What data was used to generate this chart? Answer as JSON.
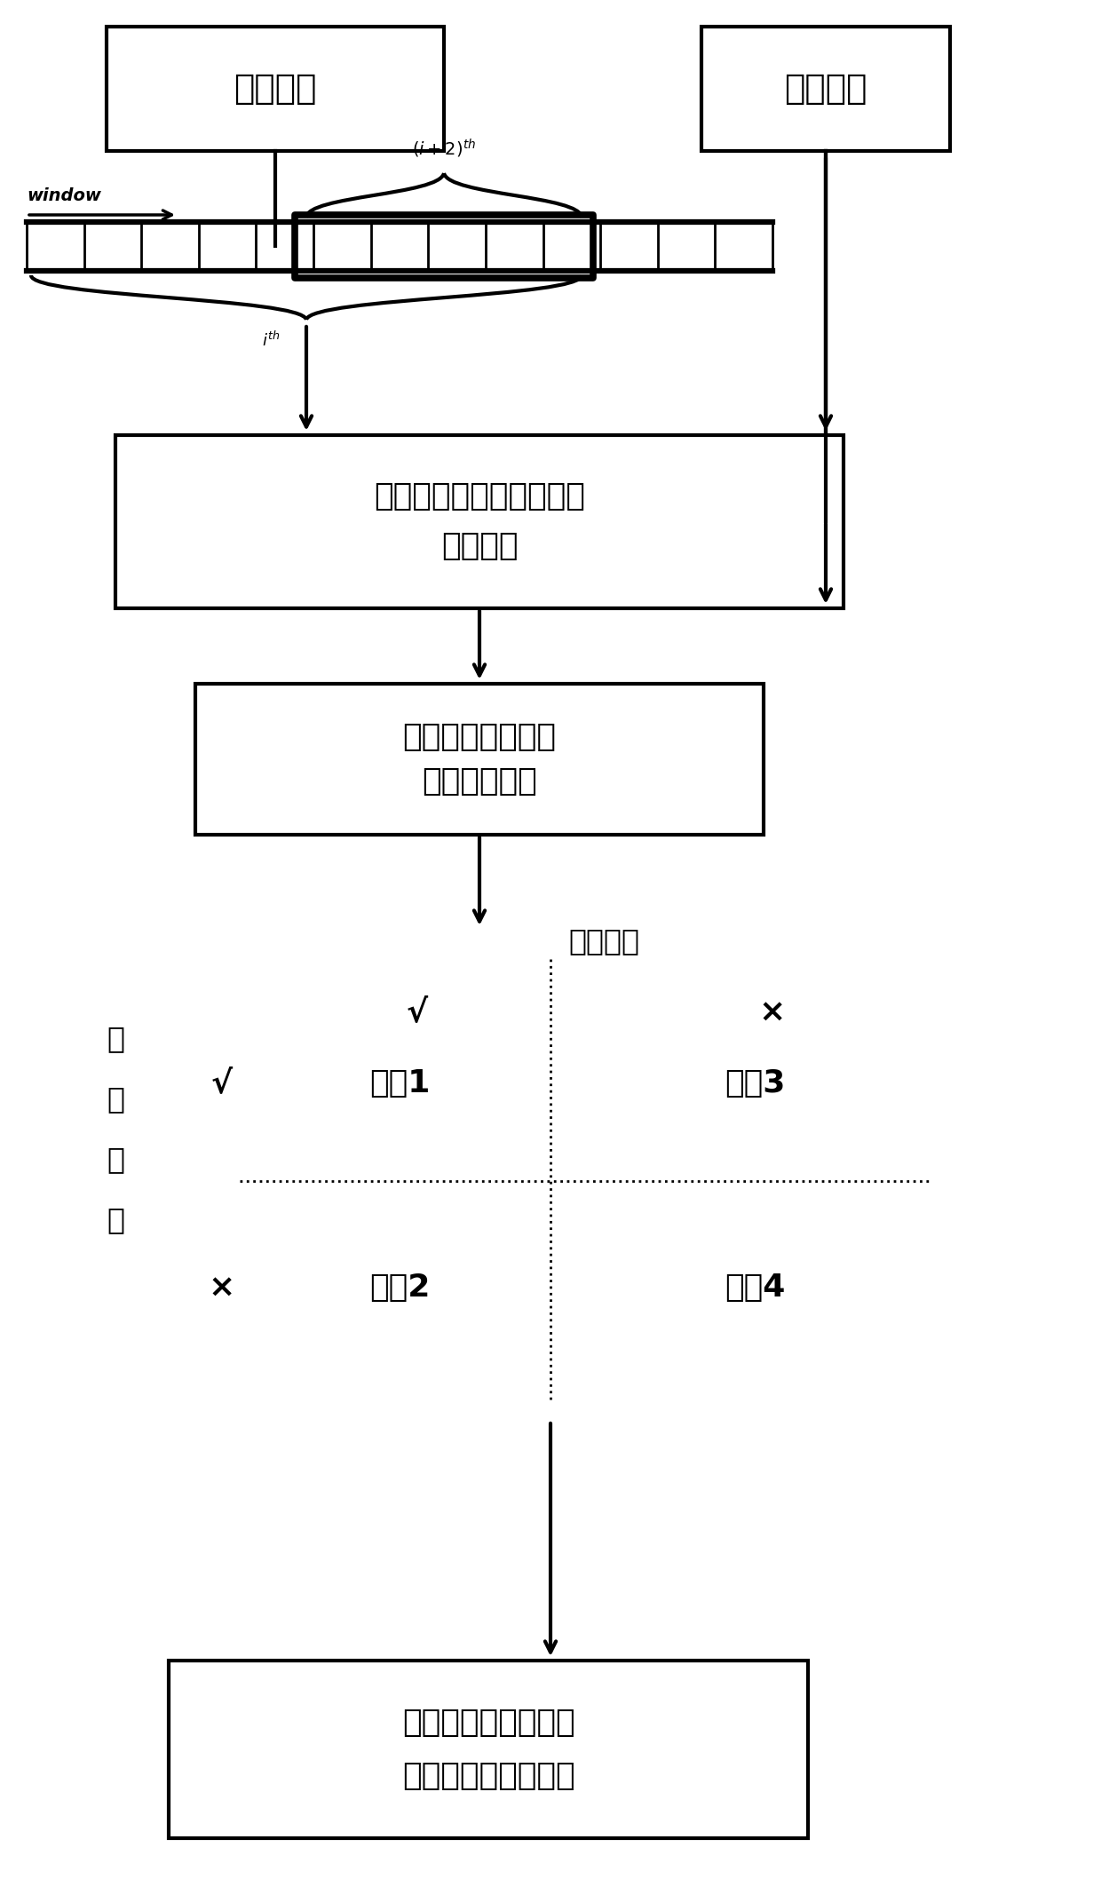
{
  "bg_color": "#ffffff",
  "box1_text": "监测样本",
  "box2_text": "参考样本",
  "box3_line1": "基于慢特征的动静协同的",
  "box3_line2": "差异分析",
  "box4_line1": "提取出两个动静的",
  "box4_line2": "分布差异指标",
  "box5_line1": "根据不同情形，采取",
  "box5_line2": "对应的报警管理方法",
  "window_label": "window",
  "static_label": "静态指标",
  "dynamic_chars": [
    "动",
    "态",
    "指",
    "标"
  ],
  "check_mark": "√",
  "cross_mark": "×",
  "case1": "情形1",
  "case2": "情形2",
  "case3": "情形3",
  "case4": "情形4",
  "font_size_box": 20,
  "font_size_label": 18,
  "font_size_mark": 20,
  "font_size_window": 13,
  "font_size_super": 12
}
